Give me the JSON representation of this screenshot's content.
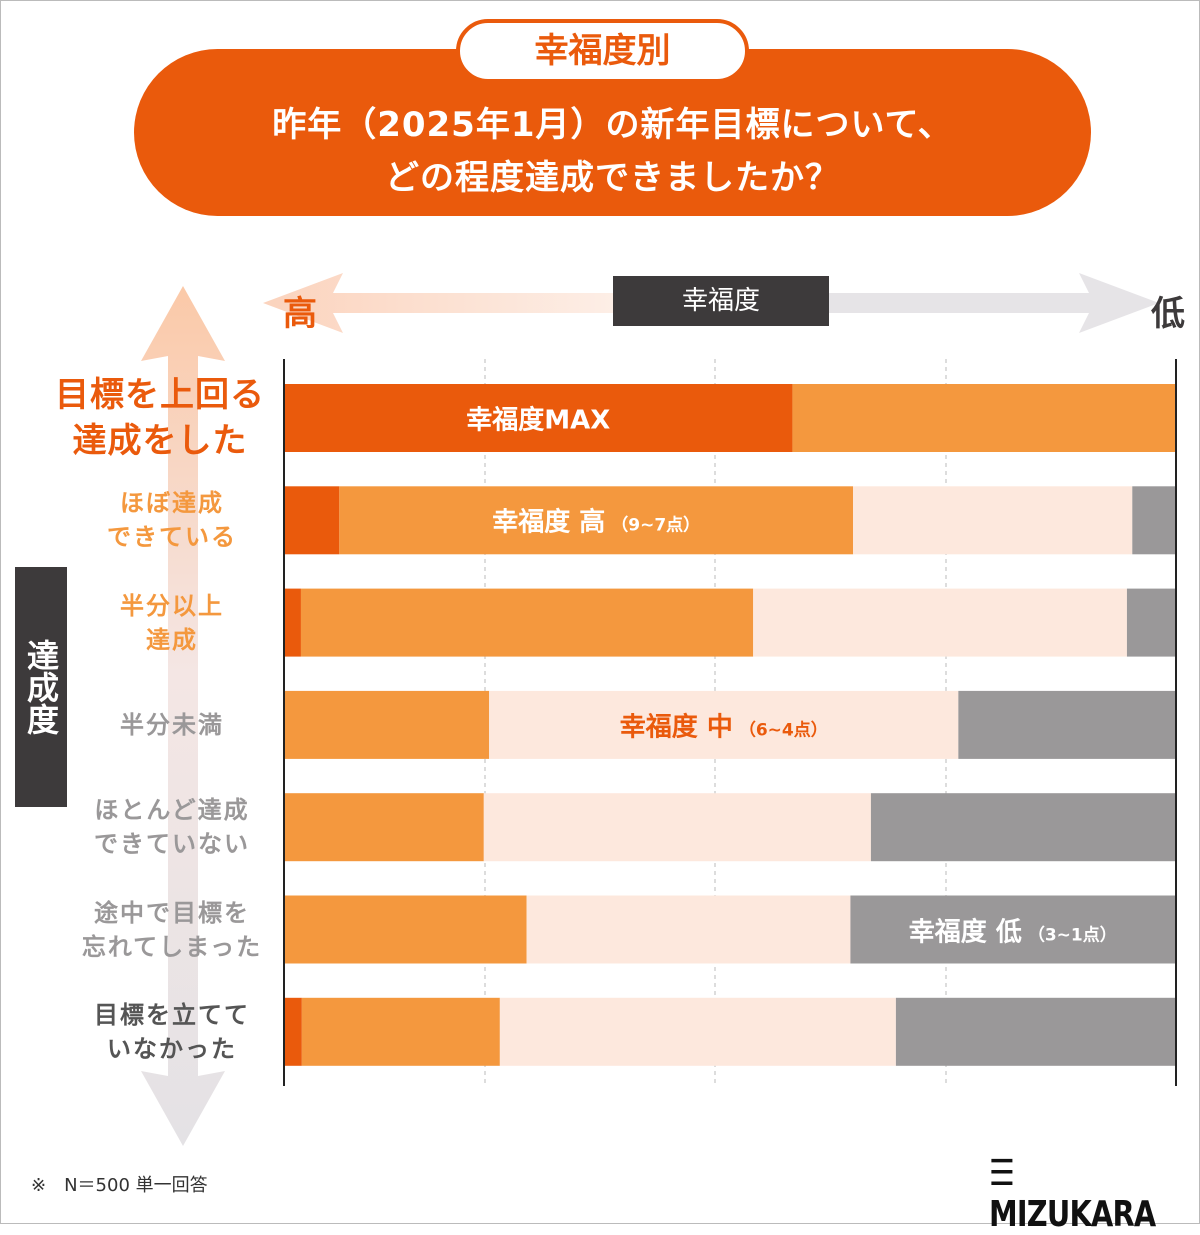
{
  "header": {
    "tab": "幸福度別",
    "title_line1": "昨年（2025年1月）の新年目標について、",
    "title_line2": "どの程度達成できましたか？"
  },
  "colors": {
    "max": "#ea5a0c",
    "high": "#f4983e",
    "mid": "#fde8dd",
    "low": "#9a9899",
    "dark": "#3d3a3b"
  },
  "chart_data": {
    "type": "bar",
    "orientation": "horizontal",
    "stacked": "100%",
    "title": "昨年（2025年1月）の新年目標について、どの程度達成できましたか？",
    "xlabel": "幸福度",
    "x_high_label": "高",
    "x_low_label": "低",
    "ylabel": "達成度",
    "categories": [
      "目標を上回る達成をした",
      "ほぼ達成できている",
      "半分以上達成",
      "半分未満",
      "ほとんど達成できていない",
      "途中で目標を忘れてしまった",
      "目標を立てていなかった"
    ],
    "series": [
      {
        "name": "幸福度MAX",
        "label": "幸福度MAX",
        "sub": "",
        "values": [
          57.0,
          6.2,
          1.9,
          0,
          0,
          0,
          2.0
        ]
      },
      {
        "name": "幸福度 高",
        "label": "幸福度 高",
        "sub": "（9~7点）",
        "values": [
          43.0,
          57.6,
          50.7,
          23.0,
          22.4,
          27.2,
          22.2
        ]
      },
      {
        "name": "幸福度 中",
        "label": "幸福度 中",
        "sub": "（6~4点）",
        "values": [
          0,
          31.3,
          41.9,
          52.6,
          43.4,
          36.3,
          44.4
        ]
      },
      {
        "name": "幸福度 低",
        "label": "幸福度 低",
        "sub": "（3~1点）",
        "values": [
          0,
          4.9,
          5.5,
          24.4,
          34.2,
          36.4,
          31.4
        ]
      }
    ],
    "xlim": [
      0,
      100
    ],
    "grid": true
  },
  "row_labels": [
    [
      "目標を上回る",
      "達成をした"
    ],
    [
      "ほぼ達成",
      "できている"
    ],
    [
      "半分以上",
      "達成"
    ],
    [
      "半分未満"
    ],
    [
      "ほとんど達成",
      "できていない"
    ],
    [
      "途中で目標を",
      "忘れてしまった"
    ],
    [
      "目標を立てて",
      "いなかった"
    ]
  ],
  "footnote": "※　N＝500 単一回答",
  "logo": "MIZUKARA"
}
